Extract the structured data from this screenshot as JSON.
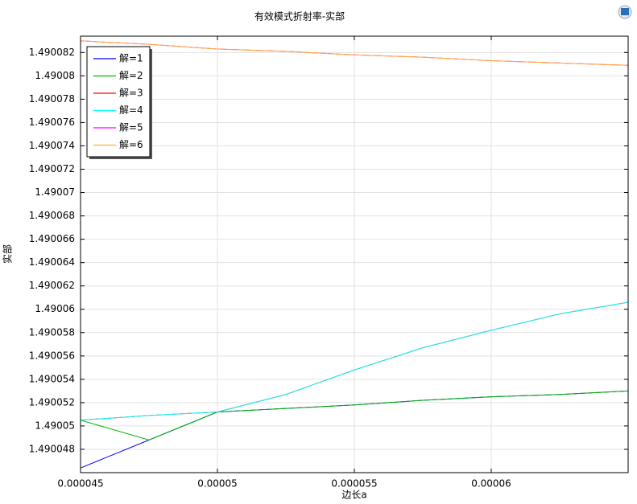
{
  "chart_data": {
    "type": "line",
    "title": "有效模式折射率-实部",
    "xlabel": "边长a",
    "ylabel": "实部",
    "x": [
      4.5e-05,
      4.75e-05,
      5e-05,
      5.25e-05,
      5.5e-05,
      5.75e-05,
      6e-05,
      6.25e-05,
      6.5e-05
    ],
    "series": [
      {
        "name": "解=1",
        "color": "#0000ff",
        "values": [
          1.4900464,
          1.4900488,
          1.4900512,
          1.4900515,
          1.4900518,
          1.4900522,
          1.4900525,
          1.4900527,
          1.490053
        ]
      },
      {
        "name": "解=2",
        "color": "#00b400",
        "values": [
          1.4900505,
          1.4900488,
          1.4900512,
          1.4900515,
          1.4900518,
          1.4900522,
          1.4900525,
          1.4900527,
          1.490053
        ]
      },
      {
        "name": "解=3",
        "color": "#ff0000",
        "values": [
          1.4900505,
          1.4900509,
          1.4900512,
          1.4900527,
          1.4900548,
          1.4900567,
          1.4900582,
          1.4900596,
          1.4900606
        ]
      },
      {
        "name": "解=4",
        "color": "#00ffff",
        "values": [
          1.4900505,
          1.4900509,
          1.4900512,
          1.4900527,
          1.4900548,
          1.4900567,
          1.4900582,
          1.4900596,
          1.4900606
        ]
      },
      {
        "name": "解=5",
        "color": "#ff00ff",
        "values": [
          1.490083,
          1.4900827,
          1.4900823,
          1.4900821,
          1.4900818,
          1.4900816,
          1.4900813,
          1.4900811,
          1.4900809
        ]
      },
      {
        "name": "解=6",
        "color": "#ffb030",
        "values": [
          1.490083,
          1.4900827,
          1.4900823,
          1.4900821,
          1.4900818,
          1.4900816,
          1.4900813,
          1.4900811,
          1.4900809
        ]
      }
    ],
    "xlim": [
      4.5e-05,
      6.5e-05
    ],
    "xticks": [
      4.5e-05,
      5e-05,
      5.5e-05,
      6e-05
    ],
    "ylim": [
      1.490046,
      1.4900834
    ],
    "yticks": [
      1.490048,
      1.49005,
      1.490052,
      1.490054,
      1.490056,
      1.490058,
      1.49006,
      1.490062,
      1.490064,
      1.490066,
      1.490068,
      1.49007,
      1.490072,
      1.490074,
      1.490076,
      1.490078,
      1.49008,
      1.490082
    ],
    "grid": true,
    "legend": "upper left"
  }
}
